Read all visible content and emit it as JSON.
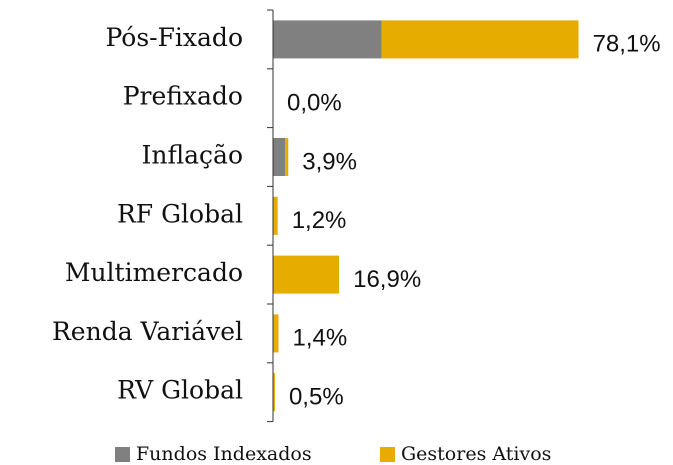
{
  "chart_data": {
    "type": "stacked-barh",
    "categories": [
      "Pós-Fixado",
      "Prefixado",
      "Inflação",
      "RF Global",
      "Multimercado",
      "Renda Variável",
      "RV Global"
    ],
    "series": [
      {
        "name": "Fundos Indexados",
        "color": "#808080",
        "values": [
          27.8,
          0,
          3.1,
          0,
          0,
          0,
          0
        ]
      },
      {
        "name": "Gestores Ativos",
        "color": "#e6ac00",
        "values": [
          50.3,
          0,
          0.8,
          1.2,
          16.9,
          1.4,
          0.5
        ]
      }
    ],
    "totals": [
      78.1,
      0,
      3.9,
      1.2,
      16.9,
      1.4,
      0.5
    ],
    "value_labels": [
      "78,1%",
      "0,0%",
      "3,9%",
      "1,2%",
      "16,9%",
      "1,4%",
      "0,5%"
    ],
    "xlim": [
      0,
      80
    ],
    "legend": "bottom"
  }
}
